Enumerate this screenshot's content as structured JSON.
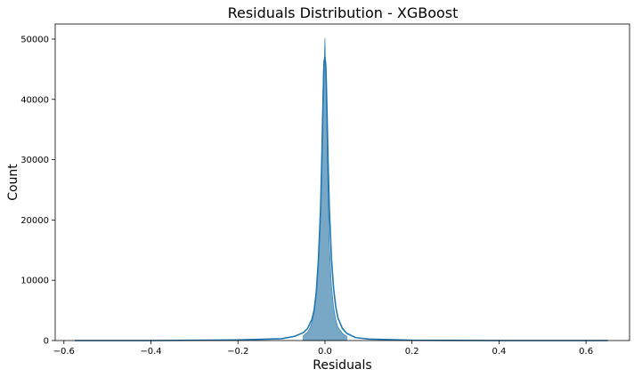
{
  "chart_data": {
    "type": "area",
    "title": "Residuals Distribution - XGBoost",
    "xlabel": "Residuals",
    "ylabel": "Count",
    "xlim": [
      -0.62,
      0.7
    ],
    "ylim": [
      0,
      52500
    ],
    "xticks": [
      -0.6,
      -0.4,
      -0.2,
      0.0,
      0.2,
      0.4,
      0.6
    ],
    "xtick_labels": [
      "−0.6",
      "−0.4",
      "−0.2",
      "0.0",
      "0.2",
      "0.4",
      "0.6"
    ],
    "yticks": [
      0,
      10000,
      20000,
      30000,
      40000,
      50000
    ],
    "ytick_labels": [
      "0",
      "10000",
      "20000",
      "30000",
      "40000",
      "50000"
    ],
    "grid": false,
    "colors": {
      "fill": "#6a9ec1",
      "line": "#1f77b4"
    },
    "series": [
      {
        "kind": "histogram",
        "x": [
          -0.05,
          -0.04,
          -0.035,
          -0.03,
          -0.025,
          -0.02,
          -0.015,
          -0.01,
          -0.008,
          -0.006,
          -0.004,
          -0.003,
          -0.002,
          -0.001,
          0.0,
          0.001,
          0.002,
          0.003,
          0.004,
          0.006,
          0.008,
          0.01,
          0.015,
          0.02,
          0.025,
          0.03,
          0.04,
          0.05
        ],
        "y": [
          800,
          1400,
          2000,
          3000,
          4800,
          8000,
          14000,
          23000,
          29000,
          36000,
          44000,
          46500,
          46000,
          48000,
          50200,
          46000,
          45500,
          41000,
          36000,
          28000,
          22000,
          16000,
          9000,
          5500,
          3400,
          2200,
          1200,
          700
        ]
      },
      {
        "kind": "kde",
        "x": [
          -0.575,
          -0.4,
          -0.2,
          -0.1,
          -0.07,
          -0.05,
          -0.04,
          -0.03,
          -0.025,
          -0.02,
          -0.015,
          -0.01,
          -0.007,
          -0.005,
          -0.003,
          -0.002,
          -0.001,
          0.0,
          0.001,
          0.002,
          0.003,
          0.005,
          0.007,
          0.01,
          0.015,
          0.02,
          0.025,
          0.03,
          0.04,
          0.05,
          0.07,
          0.1,
          0.2,
          0.4,
          0.65
        ],
        "y": [
          0,
          0,
          100,
          300,
          700,
          1300,
          2000,
          3500,
          5000,
          8000,
          13500,
          22000,
          31000,
          38000,
          44000,
          46000,
          46500,
          47000,
          46300,
          45500,
          43000,
          37000,
          30000,
          22000,
          13500,
          8500,
          5500,
          3700,
          2000,
          1200,
          500,
          250,
          50,
          0,
          0
        ]
      }
    ]
  }
}
